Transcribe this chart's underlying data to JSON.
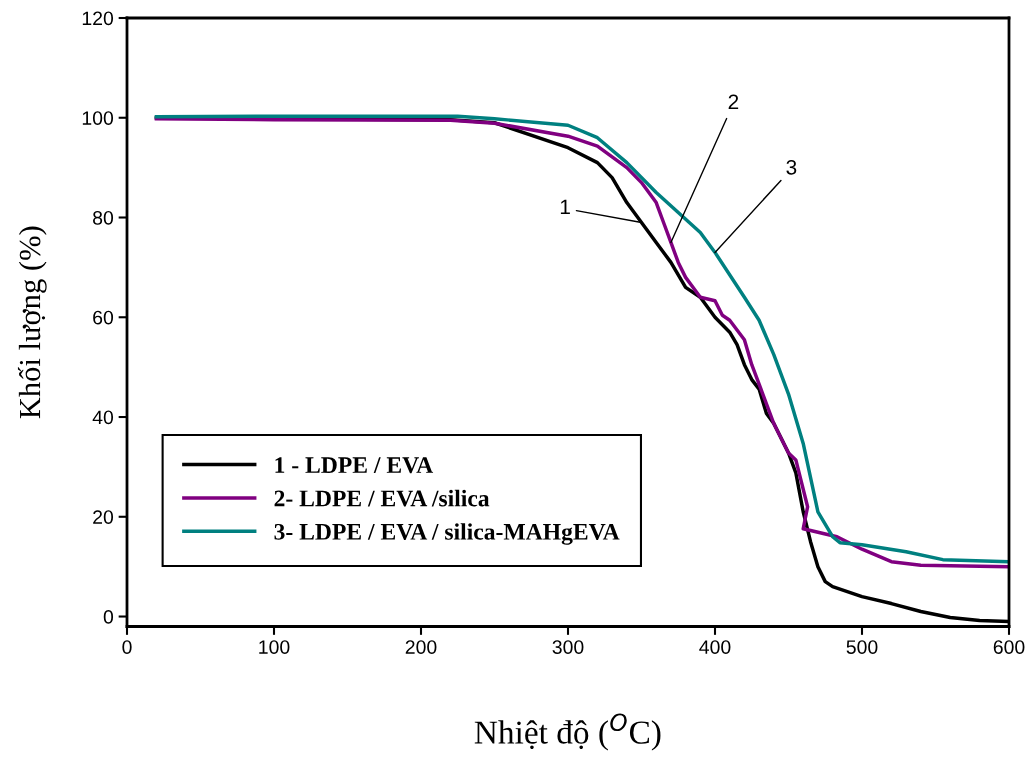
{
  "chart_data": {
    "type": "line",
    "xlabel": "Nhiệt độ ($^{O}$C)",
    "ylabel": "Khối lượng (%)",
    "xlim": [
      0,
      600
    ],
    "xticks": [
      0,
      100,
      200,
      300,
      400,
      500,
      600
    ],
    "ylim": [
      -2,
      120
    ],
    "yticks": [
      0,
      20,
      40,
      60,
      80,
      100,
      120
    ],
    "grid": false,
    "legend": "bottom left",
    "marker": "none",
    "line_style": "solid",
    "series": [
      {
        "name": "1 - LDPE / EVA",
        "color": "#000000",
        "x": [
          20,
          100,
          220,
          250,
          300,
          320,
          330,
          340,
          350,
          360,
          370,
          380,
          390,
          400,
          410,
          415,
          420,
          425,
          430,
          435,
          440,
          450,
          455,
          460,
          465,
          470,
          475,
          480,
          500,
          520,
          540,
          560,
          580,
          600
        ],
        "values": [
          100,
          99.8,
          99.6,
          99,
          94,
          91,
          88,
          83,
          79,
          75,
          71,
          66,
          64,
          60,
          57,
          54.5,
          50.5,
          47.5,
          45.6,
          40.7,
          38.7,
          32.8,
          28.8,
          21,
          15,
          10,
          7,
          6,
          4,
          2.6,
          1,
          -0.2,
          -0.8,
          -1
        ]
      },
      {
        "name": "2- LDPE / EVA /silica",
        "color": "#800080",
        "x": [
          20,
          100,
          220,
          250,
          300,
          320,
          340,
          350,
          360,
          365,
          370,
          375,
          380,
          385,
          390,
          400,
          405,
          410,
          420,
          425,
          430,
          440,
          450,
          455,
          463,
          460,
          483,
          500,
          520,
          540,
          600
        ],
        "values": [
          99.8,
          99.6,
          99.5,
          98.9,
          96.3,
          94.3,
          90,
          87,
          83,
          79,
          75,
          71,
          68,
          66,
          64,
          63.3,
          60.4,
          59.4,
          55.5,
          50.5,
          46.6,
          38.7,
          32.8,
          31.4,
          22,
          17.6,
          16,
          13.5,
          11,
          10.3,
          10
        ]
      },
      {
        "name": "3- LDPE / EVA / silica-MAHgEVA",
        "color": "#008080",
        "x": [
          20,
          100,
          225,
          250,
          300,
          320,
          340,
          360,
          375,
          390,
          400,
          420,
          430,
          440,
          450,
          460,
          470,
          480,
          485,
          500,
          530,
          555,
          600
        ],
        "values": [
          100.2,
          100.3,
          100.3,
          99.8,
          98.5,
          96,
          91,
          85,
          81,
          77,
          73,
          64,
          59.4,
          52.5,
          44.6,
          34.7,
          21,
          16,
          14.8,
          14.4,
          13,
          11.4,
          11
        ]
      }
    ],
    "annotations": [
      {
        "text": "1",
        "x": 350,
        "y": 79
      },
      {
        "text": "2",
        "x": 370,
        "y": 75
      },
      {
        "text": "3",
        "x": 400,
        "y": 73
      }
    ]
  }
}
